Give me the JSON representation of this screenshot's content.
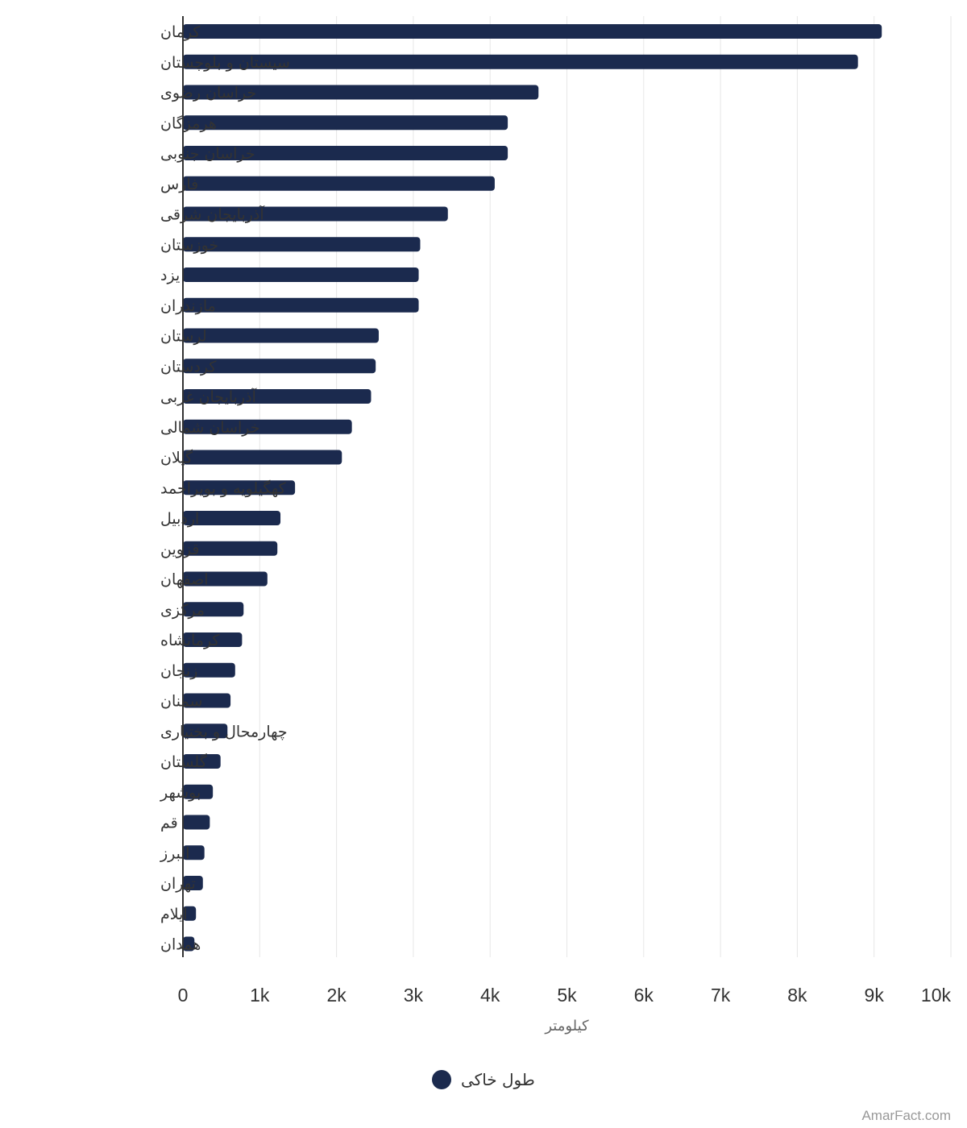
{
  "colors": {
    "bar": "#1b2a4e",
    "grid": "#e6e6e6",
    "axis": "#333333"
  },
  "chart_data": {
    "type": "bar",
    "orientation": "horizontal",
    "categories": [
      "کرمان",
      "سیستان و بلوچستان",
      "خراسان رضوی",
      "هرمزگان",
      "خراسان جنوبی",
      "فارس",
      "آذربایجان شرقی",
      "خوزستان",
      "یزد",
      "مازندران",
      "لرستان",
      "کردستان",
      "آذربایجان غربی",
      "خراسان شمالی",
      "گیلان",
      "کهگیلویه و بویراحمد",
      "اردبیل",
      "قزوین",
      "اصفهان",
      "مرکزی",
      "کرمانشاه",
      "زنجان",
      "سمنان",
      "چهارمحال و بختیاری",
      "گلستان",
      "بوشهر",
      "قم",
      "البرز",
      "تهران",
      "ایلام",
      "همدان"
    ],
    "series": [
      {
        "name": "طول خاکی",
        "values": [
          9100,
          8790,
          4630,
          4230,
          4230,
          4060,
          3450,
          3090,
          3070,
          3070,
          2550,
          2510,
          2450,
          2200,
          2070,
          1460,
          1270,
          1230,
          1100,
          790,
          770,
          680,
          620,
          580,
          490,
          390,
          350,
          280,
          260,
          170,
          150
        ]
      }
    ],
    "xlabel": "کیلومتر",
    "ylabel": "",
    "xlim": [
      0,
      10000
    ],
    "ticks": [
      "0",
      "1k",
      "2k",
      "3k",
      "4k",
      "5k",
      "6k",
      "7k",
      "8k",
      "9k",
      "10k"
    ],
    "grid": true,
    "legend_position": "bottom-center"
  },
  "credit": "AmarFact.com"
}
